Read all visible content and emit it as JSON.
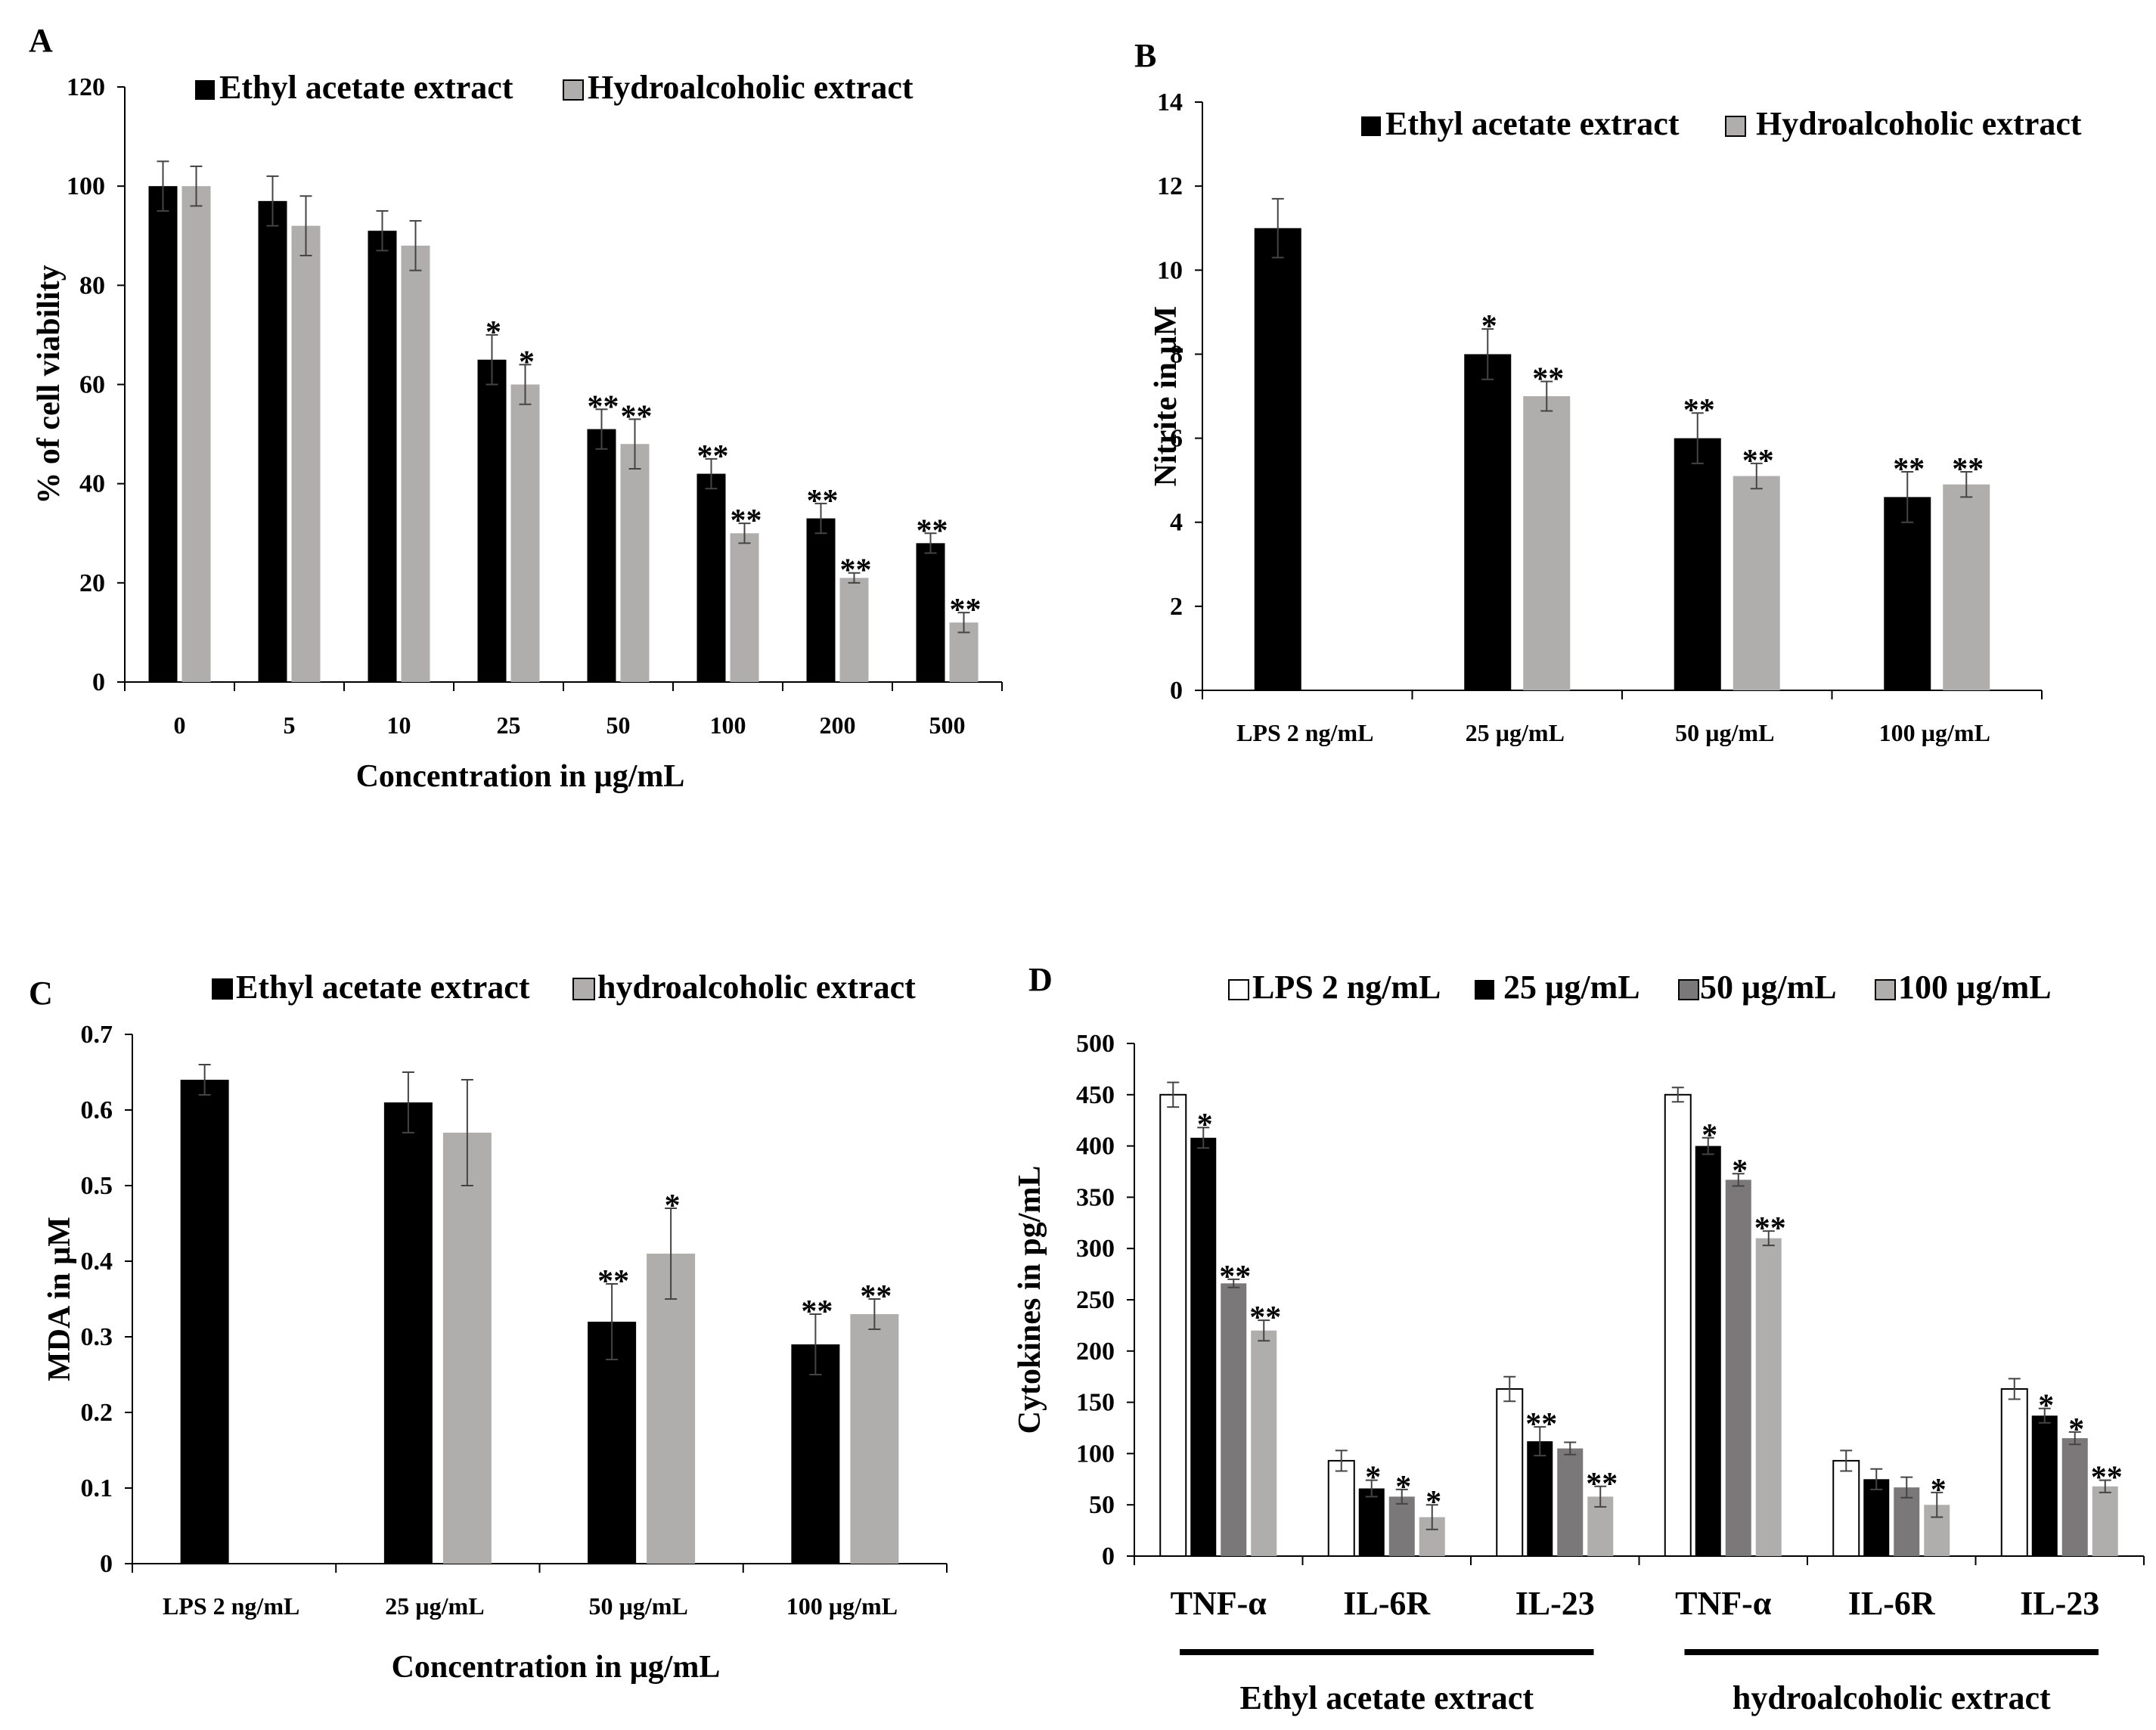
{
  "chart_data": [
    {
      "panel": "A",
      "type": "bar",
      "ylabel": "% of cell viability",
      "xlabel": "Concentration in µg/mL",
      "ylim": [
        0,
        120
      ],
      "yticks": [
        "0",
        "20",
        "40",
        "60",
        "80",
        "100",
        "120"
      ],
      "categories": [
        "0",
        "5",
        "10",
        "25",
        "50",
        "100",
        "200",
        "500"
      ],
      "legend": [
        "Ethyl acetate extract",
        "Hydroalcoholic extract"
      ],
      "colors": [
        "#000000",
        "#b0adad"
      ],
      "series": [
        {
          "name": "Ethyl acetate extract",
          "values": [
            100,
            97,
            91,
            65,
            51,
            42,
            33,
            28
          ],
          "errors": [
            5,
            5,
            4,
            5,
            4,
            3,
            3,
            2
          ],
          "sig": [
            "",
            "",
            "",
            "*",
            "**",
            "**",
            "**",
            "**"
          ]
        },
        {
          "name": "Hydroalcoholic extract",
          "values": [
            100,
            92,
            88,
            60,
            48,
            30,
            21,
            12
          ],
          "errors": [
            4,
            6,
            5,
            4,
            5,
            2,
            1,
            2
          ],
          "sig": [
            "",
            "",
            "",
            "*",
            "**",
            "**",
            "**",
            "**"
          ]
        }
      ]
    },
    {
      "panel": "B",
      "type": "bar",
      "ylabel": "Nitrite in µM",
      "xlabel": "",
      "ylim": [
        0,
        14
      ],
      "yticks": [
        "0",
        "2",
        "4",
        "6",
        "8",
        "10",
        "12",
        "14"
      ],
      "categories": [
        "LPS 2 ng/mL",
        "25 µg/mL",
        "50 µg/mL",
        "100 µg/mL"
      ],
      "legend": [
        "Ethyl acetate extract",
        "Hydroalcoholic extract"
      ],
      "colors": [
        "#000000",
        "#b0adad"
      ],
      "series": [
        {
          "name": "Ethyl acetate extract",
          "values": [
            11,
            8,
            6,
            4.6
          ],
          "errors": [
            0.7,
            0.6,
            0.6,
            0.6
          ],
          "sig": [
            "",
            "*",
            "**",
            "**"
          ]
        },
        {
          "name": "Hydroalcoholic extract",
          "values": [
            null,
            7,
            5.1,
            4.9
          ],
          "errors": [
            0,
            0.35,
            0.3,
            0.3
          ],
          "sig": [
            "",
            "**",
            "**",
            "**"
          ]
        }
      ]
    },
    {
      "panel": "C",
      "type": "bar",
      "ylabel": "MDA in µM",
      "xlabel": "Concentration in µg/mL",
      "ylim": [
        0,
        0.7
      ],
      "yticks": [
        "0",
        "0.1",
        "0.2",
        "0.3",
        "0.4",
        "0.5",
        "0.6",
        "0.7"
      ],
      "categories": [
        "LPS 2 ng/mL",
        "25 µg/mL",
        "50 µg/mL",
        "100 µg/mL"
      ],
      "legend": [
        "Ethyl acetate extract",
        "hydroalcoholic extract"
      ],
      "colors": [
        "#000000",
        "#b0adad"
      ],
      "series": [
        {
          "name": "Ethyl acetate extract",
          "values": [
            0.64,
            0.61,
            0.32,
            0.29
          ],
          "errors": [
            0.02,
            0.04,
            0.05,
            0.04
          ],
          "sig": [
            "",
            "",
            "**",
            "**"
          ]
        },
        {
          "name": "hydroalcoholic extract",
          "values": [
            null,
            0.57,
            0.41,
            0.33
          ],
          "errors": [
            0,
            0.07,
            0.06,
            0.02
          ],
          "sig": [
            "",
            "",
            "*",
            "**"
          ]
        }
      ]
    },
    {
      "panel": "D",
      "type": "bar",
      "ylabel": "Cytokines in pg/mL",
      "xlabel": "",
      "ylim": [
        0,
        500
      ],
      "yticks": [
        "0",
        "50",
        "100",
        "150",
        "200",
        "250",
        "300",
        "350",
        "400",
        "450",
        "500"
      ],
      "categories": [
        "TNF-α",
        "IL-6R",
        "IL-23",
        "TNF-α",
        "IL-6R",
        "IL-23"
      ],
      "groups": [
        {
          "label": "Ethyl acetate extract",
          "span": [
            0,
            2
          ]
        },
        {
          "label": "hydroalcoholic extract",
          "span": [
            3,
            5
          ]
        }
      ],
      "legend": [
        "LPS 2 ng/mL",
        "25 µg/mL",
        "50 µg/mL",
        "100 µg/mL"
      ],
      "colors": [
        "#ffffff",
        "#000000",
        "#7a7878",
        "#b0adad"
      ],
      "series": [
        {
          "name": "LPS 2 ng/mL",
          "values": [
            450,
            93,
            163,
            450,
            93,
            163
          ],
          "errors": [
            12,
            10,
            12,
            7,
            10,
            10
          ],
          "sig": [
            "",
            "",
            "",
            "",
            "",
            ""
          ]
        },
        {
          "name": "25 µg/mL",
          "values": [
            408,
            66,
            112,
            400,
            75,
            137
          ],
          "errors": [
            10,
            8,
            14,
            8,
            10,
            7
          ],
          "sig": [
            "*",
            "*",
            "**",
            "*",
            "",
            "*"
          ]
        },
        {
          "name": "50 µg/mL",
          "values": [
            266,
            58,
            105,
            367,
            67,
            115
          ],
          "errors": [
            4,
            7,
            6,
            6,
            10,
            6
          ],
          "sig": [
            "**",
            "*",
            "",
            "*",
            "",
            "*"
          ]
        },
        {
          "name": "100 µg/mL",
          "values": [
            220,
            38,
            58,
            310,
            50,
            68
          ],
          "errors": [
            10,
            12,
            10,
            7,
            12,
            6
          ],
          "sig": [
            "**",
            "*",
            "**",
            "**",
            "*",
            "**"
          ]
        }
      ]
    }
  ]
}
